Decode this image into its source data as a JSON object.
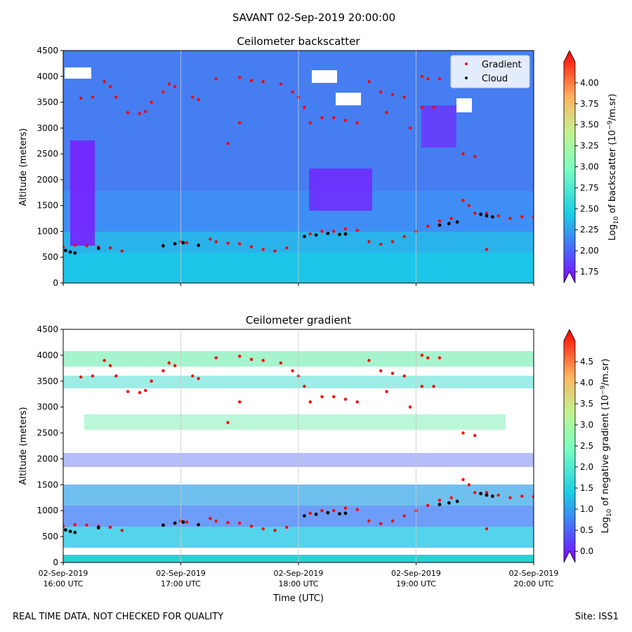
{
  "suptitle": "SAVANT 02-Sep-2019 20:00:00",
  "footer_left": "REAL TIME DATA, NOT CHECKED FOR QUALITY",
  "footer_right": "Site: ISS1",
  "chart_data": [
    {
      "type": "heatmap",
      "title": "Ceilometer backscatter",
      "xlabel": "",
      "ylabel": "Altitude (meters)",
      "ylim": [
        0,
        4500
      ],
      "xlim_hours": [
        16,
        20
      ],
      "yticks": [
        "0",
        "500",
        "1000",
        "1500",
        "2000",
        "2500",
        "3000",
        "3500",
        "4000",
        "4500"
      ],
      "colorbar": {
        "label_prefix": "Log",
        "label_sub": "10",
        "label_mid": " of backscatter (10",
        "label_sup": "−9",
        "label_suffix": "/m.sr)",
        "range": [
          1.75,
          4.25
        ],
        "ticks": [
          "1.75",
          "2.00",
          "2.25",
          "2.50",
          "2.75",
          "3.00",
          "3.25",
          "3.50",
          "3.75",
          "4.00"
        ]
      },
      "legend": {
        "position": "top-right",
        "entries": [
          "Gradient",
          "Cloud"
        ]
      },
      "series": [
        {
          "name": "Gradient",
          "color": "#ff0000",
          "points": [
            [
              16.0,
              700
            ],
            [
              16.1,
              730
            ],
            [
              16.2,
              720
            ],
            [
              16.3,
              700
            ],
            [
              16.4,
              680
            ],
            [
              16.5,
              620
            ],
            [
              16.15,
              3580
            ],
            [
              16.25,
              3600
            ],
            [
              16.35,
              3900
            ],
            [
              16.4,
              3800
            ],
            [
              16.45,
              3600
            ],
            [
              16.55,
              3300
            ],
            [
              16.65,
              3280
            ],
            [
              16.7,
              3320
            ],
            [
              16.75,
              3500
            ],
            [
              16.85,
              3700
            ],
            [
              16.9,
              3850
            ],
            [
              16.95,
              3800
            ],
            [
              17.0,
              800
            ],
            [
              17.05,
              780
            ],
            [
              17.1,
              3600
            ],
            [
              17.15,
              3550
            ],
            [
              17.25,
              850
            ],
            [
              17.3,
              800
            ],
            [
              17.4,
              770
            ],
            [
              17.5,
              760
            ],
            [
              17.6,
              700
            ],
            [
              17.7,
              650
            ],
            [
              17.8,
              620
            ],
            [
              17.9,
              680
            ],
            [
              17.5,
              3100
            ],
            [
              17.4,
              2700
            ],
            [
              17.3,
              3950
            ],
            [
              17.5,
              3980
            ],
            [
              17.6,
              3920
            ],
            [
              17.7,
              3900
            ],
            [
              17.85,
              3850
            ],
            [
              17.95,
              3700
            ],
            [
              18.0,
              3600
            ],
            [
              18.05,
              3400
            ],
            [
              18.1,
              3100
            ],
            [
              18.2,
              3200
            ],
            [
              18.3,
              3200
            ],
            [
              18.4,
              3150
            ],
            [
              18.5,
              3100
            ],
            [
              18.1,
              950
            ],
            [
              18.2,
              1000
            ],
            [
              18.3,
              1000
            ],
            [
              18.4,
              1050
            ],
            [
              18.5,
              1020
            ],
            [
              18.6,
              800
            ],
            [
              18.7,
              750
            ],
            [
              18.8,
              800
            ],
            [
              18.9,
              900
            ],
            [
              19.0,
              1000
            ],
            [
              19.1,
              1100
            ],
            [
              18.6,
              3900
            ],
            [
              18.7,
              3700
            ],
            [
              18.8,
              3650
            ],
            [
              18.9,
              3600
            ],
            [
              18.75,
              3300
            ],
            [
              18.95,
              3000
            ],
            [
              19.05,
              4000
            ],
            [
              19.1,
              3950
            ],
            [
              19.2,
              3950
            ],
            [
              19.05,
              3400
            ],
            [
              19.15,
              3400
            ],
            [
              19.4,
              1600
            ],
            [
              19.45,
              1500
            ],
            [
              19.5,
              1350
            ],
            [
              19.6,
              1350
            ],
            [
              19.7,
              1300
            ],
            [
              19.8,
              1250
            ],
            [
              19.9,
              1280
            ],
            [
              20.0,
              1270
            ],
            [
              19.4,
              2500
            ],
            [
              19.5,
              2450
            ],
            [
              19.6,
              650
            ],
            [
              19.2,
              1200
            ],
            [
              19.3,
              1250
            ]
          ]
        },
        {
          "name": "Cloud",
          "color": "#000000",
          "points": [
            [
              16.02,
              630
            ],
            [
              16.06,
              600
            ],
            [
              16.1,
              580
            ],
            [
              16.3,
              670
            ],
            [
              16.85,
              720
            ],
            [
              16.95,
              760
            ],
            [
              17.02,
              780
            ],
            [
              17.15,
              730
            ],
            [
              18.05,
              900
            ],
            [
              18.15,
              930
            ],
            [
              18.25,
              960
            ],
            [
              18.35,
              940
            ],
            [
              18.4,
              950
            ],
            [
              19.2,
              1120
            ],
            [
              19.28,
              1150
            ],
            [
              19.35,
              1180
            ],
            [
              19.55,
              1330
            ],
            [
              19.6,
              1300
            ],
            [
              19.65,
              1280
            ]
          ]
        }
      ]
    },
    {
      "type": "heatmap",
      "title": "Ceilometer gradient",
      "xlabel": "Time (UTC)",
      "ylabel": "Altitude (meters)",
      "ylim": [
        0,
        4500
      ],
      "xlim_hours": [
        16,
        20
      ],
      "yticks": [
        "0",
        "500",
        "1000",
        "1500",
        "2000",
        "2500",
        "3000",
        "3500",
        "4000",
        "4500"
      ],
      "xticks": [
        {
          "hour": 16,
          "line1": "02-Sep-2019",
          "line2": "16:00 UTC"
        },
        {
          "hour": 17,
          "line1": "02-Sep-2019",
          "line2": "17:00 UTC"
        },
        {
          "hour": 18,
          "line1": "02-Sep-2019",
          "line2": "18:00 UTC"
        },
        {
          "hour": 19,
          "line1": "02-Sep-2019",
          "line2": "19:00 UTC"
        },
        {
          "hour": 20,
          "line1": "02-Sep-2019",
          "line2": "20:00 UTC"
        }
      ],
      "colorbar": {
        "label_prefix": "Log",
        "label_sub": "10",
        "label_mid": " of negative gradient (10",
        "label_sup": "−9",
        "label_suffix": "/m.sr)",
        "range": [
          0.0,
          5.0
        ],
        "ticks": [
          "0.0",
          "0.5",
          "1.0",
          "1.5",
          "2.0",
          "2.5",
          "3.0",
          "3.5",
          "4.0",
          "4.5"
        ]
      },
      "series_ref": "same as backscatter panel (Gradient red, Cloud black)"
    }
  ]
}
